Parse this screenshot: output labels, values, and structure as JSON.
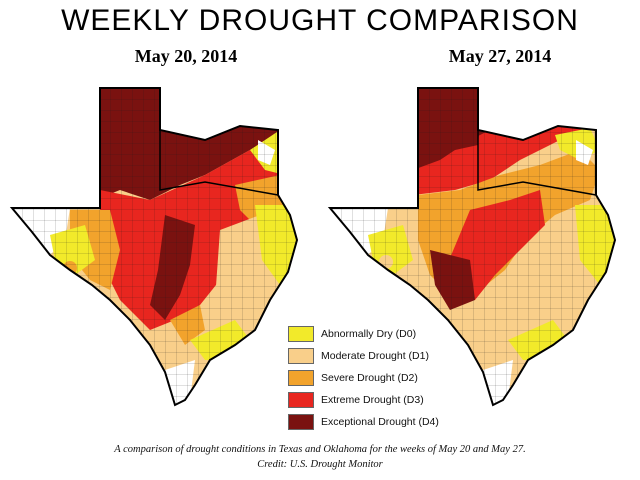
{
  "title": "WEEKLY DROUGHT COMPARISON",
  "maps": [
    {
      "date": "May 20, 2014"
    },
    {
      "date": "May 27, 2014"
    }
  ],
  "legend": [
    {
      "label": "Abnormally Dry (D0)",
      "color": "#f2ea2a"
    },
    {
      "label": "Moderate Drought (D1)",
      "color": "#f9cf8a"
    },
    {
      "label": "Severe Drought (D2)",
      "color": "#f2a32c"
    },
    {
      "label": "Extreme Drought (D3)",
      "color": "#e8261f"
    },
    {
      "label": "Exceptional Drought (D4)",
      "color": "#7a1210"
    }
  ],
  "caption": {
    "line1": "A comparison of drought conditions in Texas and Oklahoma for the weeks of May 20 and May 27.",
    "line2": "Credit: U.S. Drought Monitor"
  }
}
